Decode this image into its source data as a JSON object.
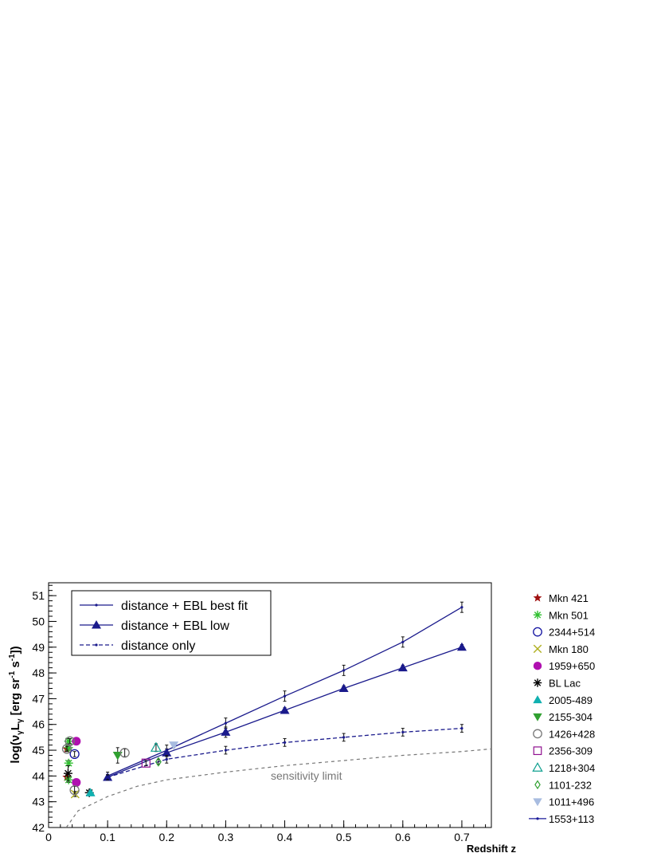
{
  "chart_data": {
    "type": "scatter",
    "xlabel": "Redshift z",
    "ylabel_main": "log(ν",
    "ylabel_sub1": "γ",
    "ylabel_mid": "L",
    "ylabel_sub2": "γ",
    "ylabel_unit": " [erg sr",
    "ylabel_sup1": "-1",
    "ylabel_mid2": " s",
    "ylabel_sup2": "-1",
    "ylabel_end": "])",
    "xlim": [
      0,
      0.75
    ],
    "ylim": [
      42,
      51.5
    ],
    "xticks": [
      0,
      0.1,
      0.2,
      0.3,
      0.4,
      0.5,
      0.6,
      0.7
    ],
    "xtick_labels": [
      "0",
      "0.1",
      "0.2",
      "0.3",
      "0.4",
      "0.5",
      "0.6",
      "0.7"
    ],
    "yticks": [
      42,
      43,
      44,
      45,
      46,
      47,
      48,
      49,
      50,
      51
    ],
    "ytick_labels": [
      "42",
      "43",
      "44",
      "45",
      "46",
      "47",
      "48",
      "49",
      "50",
      "51"
    ],
    "grid": false,
    "annotation": "sensitivity limit",
    "legend_box": [
      {
        "label": "distance + EBL best fit",
        "style": "solid-dot"
      },
      {
        "label": "distance + EBL low",
        "style": "solid-triangle"
      },
      {
        "label": "distance only",
        "style": "dashed-dot"
      }
    ],
    "lines": [
      {
        "key": "best_fit",
        "style": "solid",
        "marker": "dot",
        "points": [
          [
            0.1,
            44.0
          ],
          [
            0.2,
            45.0
          ],
          [
            0.3,
            46.05
          ],
          [
            0.4,
            47.1
          ],
          [
            0.5,
            48.1
          ],
          [
            0.6,
            49.2
          ],
          [
            0.7,
            50.55
          ]
        ],
        "errors": [
          0.15,
          0.2,
          0.2,
          0.2,
          0.2,
          0.2,
          0.2
        ]
      },
      {
        "key": "ebl_low",
        "style": "solid",
        "marker": "triangle",
        "points": [
          [
            0.1,
            43.95
          ],
          [
            0.2,
            44.9
          ],
          [
            0.3,
            45.7
          ],
          [
            0.4,
            46.55
          ],
          [
            0.5,
            47.4
          ],
          [
            0.6,
            48.2
          ],
          [
            0.7,
            49.0
          ]
        ],
        "errors": [
          0.1,
          0.15,
          0.2,
          0.1,
          0.1,
          0.1,
          0.1
        ]
      },
      {
        "key": "distance_only",
        "style": "dashed",
        "marker": "dot",
        "points": [
          [
            0.1,
            43.95
          ],
          [
            0.2,
            44.65
          ],
          [
            0.3,
            45.0
          ],
          [
            0.4,
            45.3
          ],
          [
            0.5,
            45.5
          ],
          [
            0.6,
            45.7
          ],
          [
            0.7,
            45.85
          ]
        ],
        "errors": [
          0.1,
          0.15,
          0.15,
          0.15,
          0.15,
          0.15,
          0.15
        ]
      }
    ],
    "sensitivity_limit": {
      "style": "dashed",
      "points": [
        [
          0.03,
          42.0
        ],
        [
          0.05,
          42.65
        ],
        [
          0.1,
          43.2
        ],
        [
          0.15,
          43.6
        ],
        [
          0.2,
          43.85
        ],
        [
          0.3,
          44.15
        ],
        [
          0.4,
          44.4
        ],
        [
          0.5,
          44.6
        ],
        [
          0.6,
          44.8
        ],
        [
          0.7,
          44.95
        ],
        [
          0.75,
          45.05
        ]
      ]
    },
    "sources": [
      {
        "name": "Mkn 421",
        "marker": "star",
        "color": "#a01010",
        "points": [
          [
            0.031,
            45.05,
            0.1
          ],
          [
            0.031,
            43.95,
            0.1
          ]
        ]
      },
      {
        "name": "Mkn 501",
        "marker": "asterisk",
        "color": "#30c030",
        "points": [
          [
            0.034,
            45.35,
            0.1
          ],
          [
            0.034,
            45.1,
            0.1
          ],
          [
            0.034,
            44.5,
            0.1
          ],
          [
            0.034,
            43.85,
            0.1
          ]
        ]
      },
      {
        "name": "2344+514",
        "marker": "open-circle",
        "color": "#1010a0",
        "points": [
          [
            0.044,
            44.85,
            0.1
          ]
        ]
      },
      {
        "name": "Mkn 180",
        "marker": "cross",
        "color": "#b0b020",
        "points": [
          [
            0.045,
            43.3,
            0.1
          ]
        ]
      },
      {
        "name": "1959+650",
        "marker": "filled-circle",
        "color": "#b010b0",
        "points": [
          [
            0.047,
            45.35,
            0.1
          ],
          [
            0.047,
            43.75,
            0.1
          ]
        ]
      },
      {
        "name": "BL Lac",
        "marker": "asterisk",
        "color": "#000000",
        "points": [
          [
            0.069,
            43.35,
            0.1
          ],
          [
            0.033,
            44.1,
            0.3
          ]
        ]
      },
      {
        "name": "2005-489",
        "marker": "filled-triangle-up",
        "color": "#10b0b0",
        "points": [
          [
            0.071,
            43.35,
            0.1
          ]
        ]
      },
      {
        "name": "2155-304",
        "marker": "filled-triangle-down",
        "color": "#30a030",
        "points": [
          [
            0.117,
            44.8,
            0.3
          ]
        ]
      },
      {
        "name": "1426+428",
        "marker": "open-circle",
        "color": "#777777",
        "points": [
          [
            0.129,
            44.9,
            0.15
          ],
          [
            0.031,
            45.05,
            0.1
          ],
          [
            0.036,
            45.35,
            0.1
          ],
          [
            0.044,
            43.45,
            0.15
          ]
        ]
      },
      {
        "name": "2356-309",
        "marker": "open-square",
        "color": "#901090",
        "points": [
          [
            0.165,
            44.5,
            0.1
          ]
        ]
      },
      {
        "name": "1218+304",
        "marker": "open-triangle-up",
        "color": "#10a090",
        "points": [
          [
            0.182,
            45.1,
            0.15
          ]
        ]
      },
      {
        "name": "1101-232",
        "marker": "open-diamond",
        "color": "#30a030",
        "points": [
          [
            0.186,
            44.55,
            0.1
          ]
        ]
      },
      {
        "name": "1011+496",
        "marker": "filled-triangle-down",
        "color": "#a8bce0",
        "points": [
          [
            0.212,
            45.2,
            0.1
          ]
        ]
      },
      {
        "name": "1553+113",
        "marker": "line-dot",
        "color": "#1a1a9a",
        "points": []
      }
    ]
  }
}
